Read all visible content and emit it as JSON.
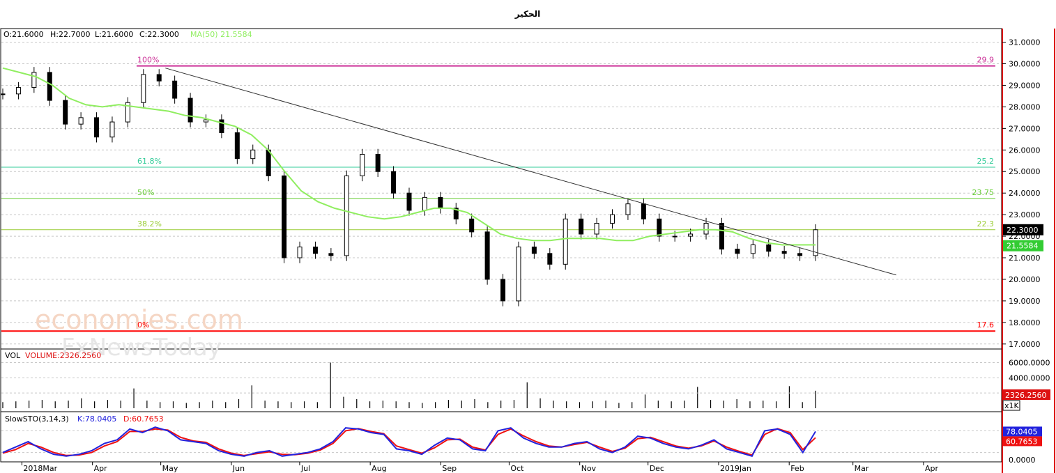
{
  "title": "الحكير",
  "ohlc_header": {
    "open": "O:21.6000",
    "high": "H:22.7000",
    "low": "L:21.6000",
    "close": "C:22.3000",
    "ma": "MA(50)  21.5584"
  },
  "colors": {
    "candle": "#000000",
    "ma_line": "#90ee60",
    "fib_100": "#cc3399",
    "fib_618": "#33cc99",
    "fib_50": "#66cc33",
    "fib_382": "#99cc33",
    "fib_0": "#ff0000",
    "trendline": "#333333",
    "stoch_k": "#2222dd",
    "stoch_d": "#ee1111",
    "price_badge": "#000000",
    "ma_badge": "#33cc33",
    "volume_badge": "#dd1111",
    "right_border": "#dd0000"
  },
  "price_axis": {
    "ticks": [
      "31.0000",
      "30.0000",
      "29.0000",
      "28.0000",
      "27.0000",
      "26.0000",
      "25.0000",
      "24.0000",
      "23.0000",
      "22.0000",
      "21.0000",
      "20.0000",
      "19.0000",
      "18.0000",
      "17.0000"
    ],
    "current_price_label": "22.3000",
    "ma_label": "21.5584"
  },
  "volume_panel": {
    "label": "VOL",
    "value_label": "VOLUME:2326.2560",
    "ticks": [
      "6000.0000",
      "4000.0000",
      "2000.0000"
    ],
    "current_label": "2326.2560",
    "multiplier_label": "x1K"
  },
  "stoch_panel": {
    "label": "SlowSTO(3,14,3)",
    "k_label": "K:78.0405",
    "d_label": "D:60.7653",
    "k_value": "78.0405",
    "d_value": "60.7653",
    "zero_tick": "0.0000"
  },
  "time_axis": {
    "labels": [
      "2018Mar",
      "Apr",
      "May",
      "Jun",
      "Jul",
      "Aug",
      "Sep",
      "Oct",
      "Nov",
      "Dec",
      "2019Jan",
      "Feb",
      "Mar",
      "Apr"
    ]
  },
  "watermark": {
    "line1": "economies.com",
    "line2": "FxNewsToday"
  },
  "chart_data": {
    "type": "candlestick",
    "ylim": [
      16.8,
      31.6
    ],
    "fib_levels": [
      {
        "label": "100%",
        "price": 29.9,
        "price_label": "29.9"
      },
      {
        "label": "61.8%",
        "price": 25.2,
        "price_label": "25.2"
      },
      {
        "label": "50%",
        "price": 23.75,
        "price_label": "23.75"
      },
      {
        "label": "38.2%",
        "price": 22.3,
        "price_label": "22.3"
      },
      {
        "label": "0%",
        "price": 17.6,
        "price_label": "17.6"
      }
    ],
    "trendline": {
      "from": {
        "date": "2018-05-03",
        "price": 29.8
      },
      "to": {
        "date": "2019-03-20",
        "price": 20.2
      }
    },
    "price_series": {
      "name": "Close",
      "dates": [
        "2018-03-01",
        "2018-03-08",
        "2018-03-15",
        "2018-03-22",
        "2018-03-29",
        "2018-04-05",
        "2018-04-12",
        "2018-04-19",
        "2018-04-26",
        "2018-05-03",
        "2018-05-10",
        "2018-05-17",
        "2018-05-24",
        "2018-05-31",
        "2018-06-07",
        "2018-06-14",
        "2018-06-21",
        "2018-06-28",
        "2018-07-05",
        "2018-07-12",
        "2018-07-19",
        "2018-07-26",
        "2018-08-02",
        "2018-08-09",
        "2018-08-16",
        "2018-08-23",
        "2018-08-30",
        "2018-09-06",
        "2018-09-13",
        "2018-09-20",
        "2018-09-27",
        "2018-10-04",
        "2018-10-11",
        "2018-10-18",
        "2018-10-25",
        "2018-11-01",
        "2018-11-08",
        "2018-11-15",
        "2018-11-22",
        "2018-11-29",
        "2018-12-06",
        "2018-12-13",
        "2018-12-20",
        "2018-12-27",
        "2019-01-03",
        "2019-01-10",
        "2019-01-17",
        "2019-01-24",
        "2019-01-31",
        "2019-02-07",
        "2019-02-14",
        "2019-02-21",
        "2019-02-28"
      ],
      "values": [
        28.6,
        28.9,
        29.6,
        28.3,
        27.2,
        27.5,
        26.6,
        27.3,
        28.2,
        29.5,
        29.2,
        28.4,
        27.3,
        27.4,
        26.8,
        25.6,
        26.0,
        24.8,
        21.0,
        21.5,
        21.2,
        21.1,
        24.8,
        25.8,
        25.0,
        24.0,
        23.2,
        23.8,
        23.3,
        22.8,
        22.2,
        20.0,
        19.0,
        21.5,
        21.2,
        20.7,
        22.8,
        22.1,
        22.6,
        23.0,
        23.5,
        22.8,
        22.0,
        22.0,
        22.1,
        22.6,
        21.4,
        21.2,
        21.6,
        21.3,
        21.2,
        21.1,
        22.3
      ]
    },
    "ma_series": {
      "name": "MA(50)",
      "values": [
        29.8,
        29.6,
        29.4,
        29.0,
        28.4,
        28.1,
        28.0,
        28.1,
        28.0,
        27.9,
        27.8,
        27.6,
        27.5,
        27.3,
        27.1,
        26.7,
        26.0,
        25.0,
        24.1,
        23.6,
        23.3,
        23.1,
        22.9,
        22.8,
        22.9,
        23.1,
        23.3,
        23.3,
        23.1,
        22.6,
        22.1,
        21.9,
        21.8,
        21.8,
        21.9,
        21.9,
        21.9,
        21.8,
        21.8,
        22.0,
        22.1,
        22.2,
        22.3,
        22.3,
        22.2,
        21.9,
        21.7,
        21.6,
        21.6,
        21.6
      ]
    },
    "volume_series": {
      "name": "VOLUME",
      "values": [
        0.8,
        0.9,
        1.0,
        1.1,
        0.9,
        1.0,
        1.3,
        0.9,
        1.1,
        1.0,
        2.6,
        1.0,
        0.8,
        0.9,
        0.7,
        0.8,
        1.0,
        0.8,
        1.2,
        3.0,
        1.0,
        0.9,
        0.8,
        0.9,
        0.8,
        6.0,
        1.5,
        1.2,
        0.9,
        1.0,
        0.9,
        0.8,
        0.7,
        0.8,
        1.1,
        1.0,
        1.2,
        0.8,
        1.0,
        1.1,
        3.4,
        1.3,
        1.0,
        0.9,
        0.8,
        0.9,
        1.0,
        0.7,
        0.8,
        1.8,
        1.0,
        0.9,
        1.0,
        2.8,
        1.1,
        1.0,
        1.2,
        0.9,
        1.0,
        0.9,
        2.9,
        0.8,
        2.3
      ]
    },
    "stoch_k_series": {
      "name": "K",
      "values": [
        20,
        35,
        50,
        30,
        15,
        10,
        15,
        25,
        45,
        55,
        85,
        75,
        90,
        80,
        55,
        50,
        45,
        25,
        15,
        10,
        20,
        25,
        10,
        15,
        20,
        30,
        50,
        88,
        85,
        75,
        70,
        30,
        25,
        15,
        40,
        60,
        55,
        30,
        25,
        80,
        88,
        60,
        45,
        35,
        35,
        45,
        50,
        30,
        20,
        35,
        65,
        60,
        45,
        35,
        30,
        40,
        55,
        30,
        20,
        10,
        80,
        85,
        70,
        20,
        78
      ]
    },
    "stoch_d_series": {
      "name": "D",
      "values": [
        18,
        28,
        45,
        35,
        20,
        12,
        13,
        20,
        38,
        50,
        78,
        78,
        85,
        82,
        62,
        52,
        48,
        30,
        18,
        12,
        17,
        22,
        15,
        14,
        18,
        27,
        45,
        80,
        86,
        78,
        72,
        38,
        28,
        18,
        33,
        55,
        57,
        35,
        27,
        70,
        85,
        66,
        50,
        38,
        35,
        42,
        48,
        35,
        23,
        32,
        58,
        62,
        50,
        38,
        32,
        38,
        52,
        35,
        23,
        13,
        70,
        86,
        75,
        28,
        61
      ]
    }
  }
}
